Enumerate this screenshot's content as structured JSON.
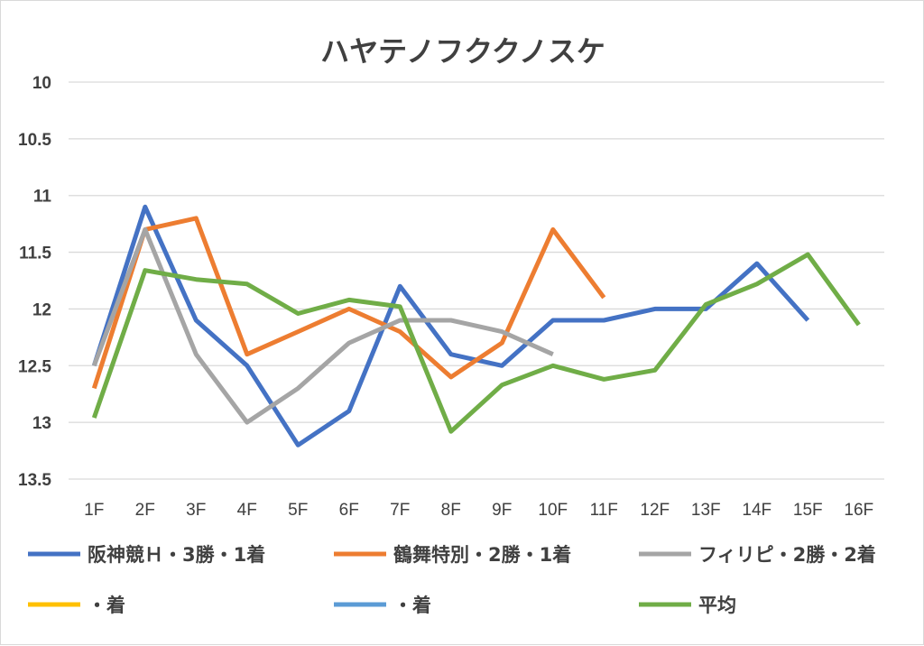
{
  "chart_data": {
    "type": "line",
    "title": "ハヤテノフククノスケ",
    "categories": [
      "1F",
      "2F",
      "3F",
      "4F",
      "5F",
      "6F",
      "7F",
      "8F",
      "9F",
      "10F",
      "11F",
      "12F",
      "13F",
      "14F",
      "15F",
      "16F"
    ],
    "y_axis": {
      "min": 10,
      "max": 13.5,
      "reversed": true,
      "ticks": [
        "10",
        "10.5",
        "11",
        "11.5",
        "12",
        "12.5",
        "13",
        "13.5"
      ],
      "tick_values": [
        10,
        10.5,
        11,
        11.5,
        12,
        12.5,
        13,
        13.5
      ]
    },
    "grid": true,
    "legend_position": "bottom",
    "series": [
      {
        "name": "阪神競Ｈ・3勝・1着",
        "color": "#4472C4",
        "values": [
          12.5,
          11.1,
          12.1,
          12.5,
          13.2,
          12.9,
          11.8,
          12.4,
          12.5,
          12.1,
          12.1,
          12.0,
          12.0,
          11.6,
          12.1,
          null
        ]
      },
      {
        "name": "鶴舞特別・2勝・1着",
        "color": "#ED7D31",
        "values": [
          12.7,
          11.3,
          11.2,
          12.4,
          12.2,
          12.0,
          12.2,
          12.6,
          12.3,
          11.3,
          11.9,
          null,
          null,
          null,
          null,
          null
        ]
      },
      {
        "name": "フィリピ・2勝・2着",
        "color": "#A5A5A5",
        "values": [
          12.5,
          11.3,
          12.4,
          13.0,
          12.7,
          12.3,
          12.1,
          12.1,
          12.2,
          12.4,
          null,
          null,
          null,
          null,
          null,
          null
        ]
      },
      {
        "name": "・着",
        "color": "#FFC000",
        "values": [
          null,
          null,
          null,
          null,
          null,
          null,
          null,
          null,
          null,
          null,
          null,
          null,
          null,
          null,
          null,
          null
        ]
      },
      {
        "name": "・着",
        "color": "#5B9BD5",
        "values": [
          null,
          null,
          null,
          null,
          null,
          null,
          null,
          null,
          null,
          null,
          null,
          null,
          null,
          null,
          null,
          null
        ]
      },
      {
        "name": "平均",
        "color": "#70AD47",
        "values": [
          12.96,
          11.66,
          11.74,
          11.78,
          12.04,
          11.92,
          11.98,
          13.08,
          12.67,
          12.5,
          12.62,
          12.54,
          11.96,
          11.78,
          11.52,
          12.14
        ]
      }
    ]
  }
}
